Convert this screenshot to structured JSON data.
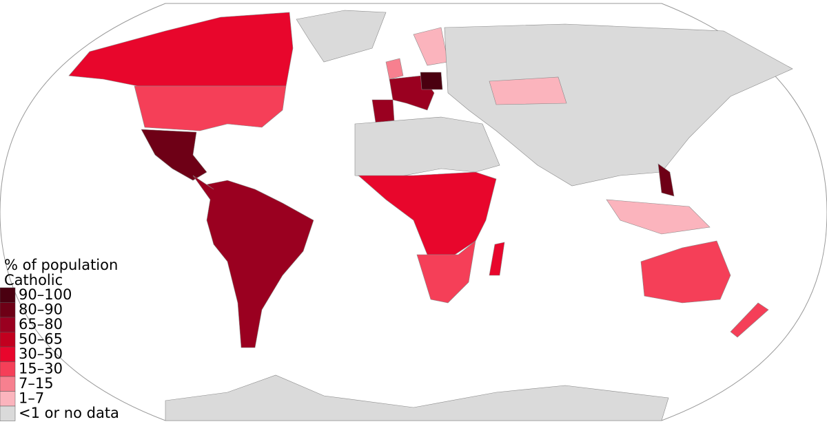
{
  "legend": {
    "title_lines": [
      "% of population",
      "Catholic"
    ],
    "items": [
      {
        "label": "90–100",
        "color": "#4a0010"
      },
      {
        "label": "80–90",
        "color": "#6e0016"
      },
      {
        "label": "65–80",
        "color": "#9a0020"
      },
      {
        "label": "50–65",
        "color": "#c2001f"
      },
      {
        "label": "30–50",
        "color": "#e8062c"
      },
      {
        "label": "15–30",
        "color": "#f53f58"
      },
      {
        "label": "7–15",
        "color": "#f7808f"
      },
      {
        "label": "1–7",
        "color": "#fbb4bd"
      },
      {
        "label": "<1 or no data",
        "color": "#dadada"
      }
    ]
  }
}
